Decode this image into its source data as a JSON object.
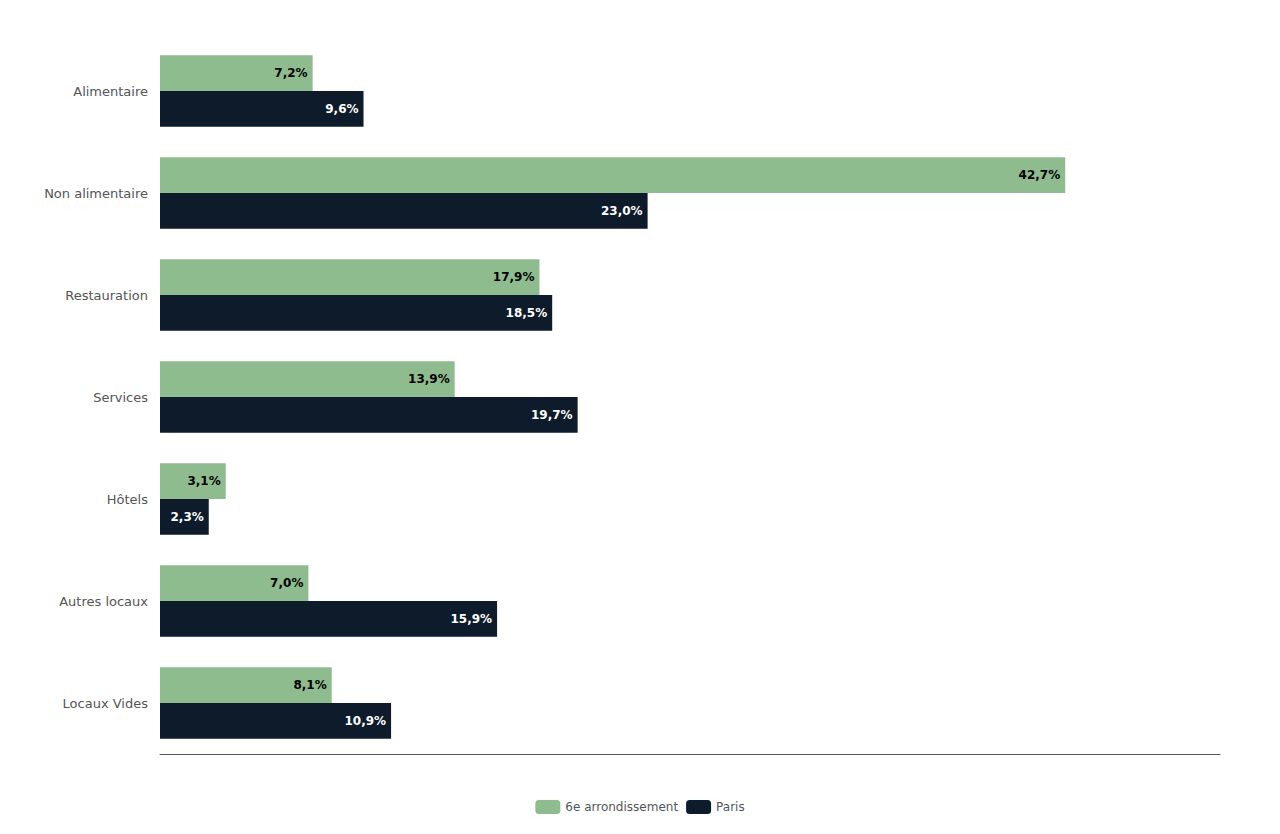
{
  "chart_data": {
    "type": "bar",
    "orientation": "horizontal",
    "categories": [
      "Alimentaire",
      "Non alimentaire",
      "Restauration",
      "Services",
      "Hôtels",
      "Autres locaux",
      "Locaux Vides"
    ],
    "series": [
      {
        "name": "6e arrondissement",
        "color": "#8fbc8f",
        "values": [
          7.2,
          42.7,
          17.9,
          13.9,
          3.1,
          7.0,
          8.1
        ],
        "value_labels": [
          "7,2%",
          "42,7%",
          "17,9%",
          "13,9%",
          "3,1%",
          "7,0%",
          "8,1%"
        ]
      },
      {
        "name": "Paris",
        "color": "#0d1b2a",
        "values": [
          9.6,
          23.0,
          18.5,
          19.7,
          2.3,
          15.9,
          10.9
        ],
        "value_labels": [
          "9,6%",
          "23,0%",
          "18,5%",
          "19,7%",
          "2,3%",
          "15,9%",
          "10,9%"
        ]
      }
    ],
    "xlim": [
      0,
      50
    ],
    "tick_labels": "y",
    "grid": false,
    "legend": "bottom",
    "data_labels": true
  }
}
